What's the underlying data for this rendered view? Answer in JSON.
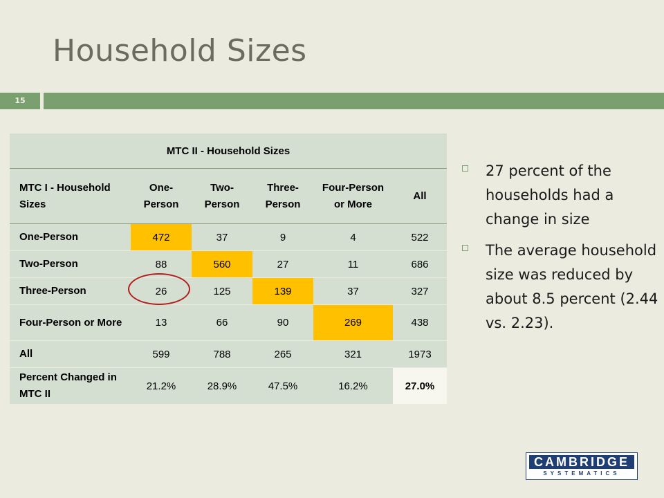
{
  "slide": {
    "title": "Household Sizes",
    "number": "15"
  },
  "table": {
    "title": "MTC II - Household Sizes",
    "row_header": "MTC I - Household Sizes",
    "columns": [
      "One-Person",
      "Two-Person",
      "Three-Person",
      "Four-Person or More",
      "All"
    ],
    "rows": [
      {
        "label": "One-Person",
        "values": [
          "472",
          "37",
          "9",
          "4",
          "522"
        ]
      },
      {
        "label": "Two-Person",
        "values": [
          "88",
          "560",
          "27",
          "11",
          "686"
        ]
      },
      {
        "label": "Three-Person",
        "values": [
          "26",
          "125",
          "139",
          "37",
          "327"
        ]
      },
      {
        "label": "Four-Person or More",
        "values": [
          "13",
          "66",
          "90",
          "269",
          "438"
        ]
      },
      {
        "label": "All",
        "values": [
          "599",
          "788",
          "265",
          "321",
          "1973"
        ]
      },
      {
        "label": "Percent Changed in MTC II",
        "values": [
          "21.2%",
          "28.9%",
          "47.5%",
          "16.2%",
          "27.0%"
        ]
      }
    ],
    "highlight_color": "#ffc000",
    "header_bg": "#d4dfd1"
  },
  "bullets": [
    "27 percent of the households had a change in size",
    "The average household size was reduced by about 8.5 percent (2.44 vs. 2.23)."
  ],
  "logo": {
    "line1": "CAMBRIDGE",
    "line2": "SYSTEMATICS"
  },
  "colors": {
    "accent_green": "#79a06e",
    "background": "#ebebdf",
    "circle_red": "#b21d1d",
    "logo_blue": "#1f3f74"
  }
}
